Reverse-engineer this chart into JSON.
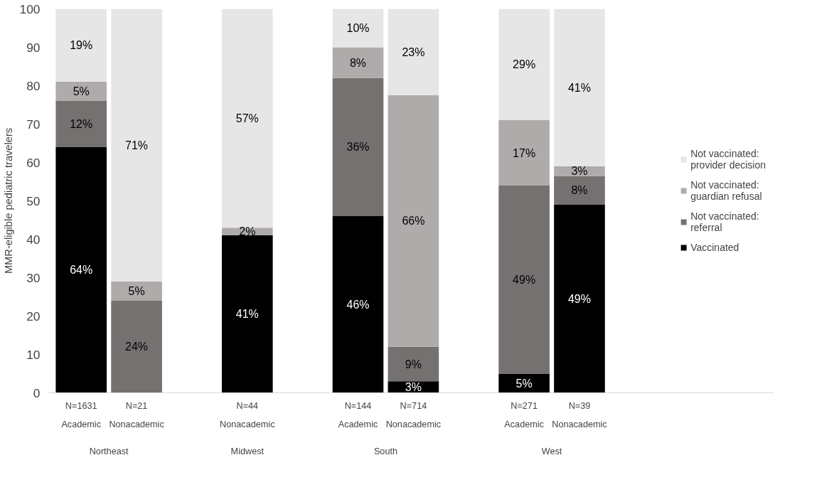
{
  "chart_data": {
    "type": "bar",
    "stacked": true,
    "ylabel": "MMR-eligible pediatric travelers",
    "categories": [
      "N=1631\nAcademic",
      "N=21\nNonacademic",
      null,
      "N=44\nNonacademic",
      null,
      "N=144\nAcademic",
      "N=714\nNonacademic",
      null,
      "N=271\nAcademic",
      "N=39\nNonacademic"
    ],
    "series": [
      {
        "name": "Vaccinated",
        "color": "#000000",
        "values": [
          64,
          null,
          null,
          41,
          null,
          46,
          3,
          null,
          5,
          49
        ],
        "value_labels": [
          "64%",
          null,
          null,
          "41%",
          null,
          "46%",
          "3%",
          null,
          "5%",
          "49%"
        ]
      },
      {
        "name": "Not vaccinated:\nreferral",
        "color": "#767171",
        "values": [
          12,
          24,
          null,
          null,
          null,
          36,
          9,
          null,
          49,
          7.5
        ],
        "value_labels": [
          "12%",
          "24%",
          null,
          null,
          null,
          "36%",
          "9%",
          null,
          "49%",
          "8%"
        ]
      },
      {
        "name": "Not vaccinated:\nguardian refusal",
        "color": "#afabab",
        "values": [
          5,
          5,
          null,
          2,
          null,
          8,
          65.5,
          null,
          17,
          2.5
        ],
        "value_labels": [
          "5%",
          "5%",
          null,
          "2%",
          null,
          "8%",
          "66%",
          null,
          "17%",
          "3%"
        ]
      },
      {
        "name": "Not vaccinated:\nprovider decision",
        "color": "#e7e6e6",
        "values": [
          19,
          71,
          null,
          57,
          null,
          10,
          22.5,
          null,
          29,
          41
        ],
        "value_labels": [
          "19%",
          "71%",
          null,
          "57%",
          null,
          "10%",
          "23%",
          null,
          "29%",
          "41%"
        ]
      }
    ],
    "annotations": [
      "Northeast",
      "Midwest",
      "South",
      "West"
    ],
    "ylim": [
      0,
      100
    ],
    "yticks": [
      0,
      10,
      20,
      30,
      40,
      50,
      60,
      70,
      80,
      90,
      100
    ],
    "grid": false,
    "legend": "right"
  }
}
